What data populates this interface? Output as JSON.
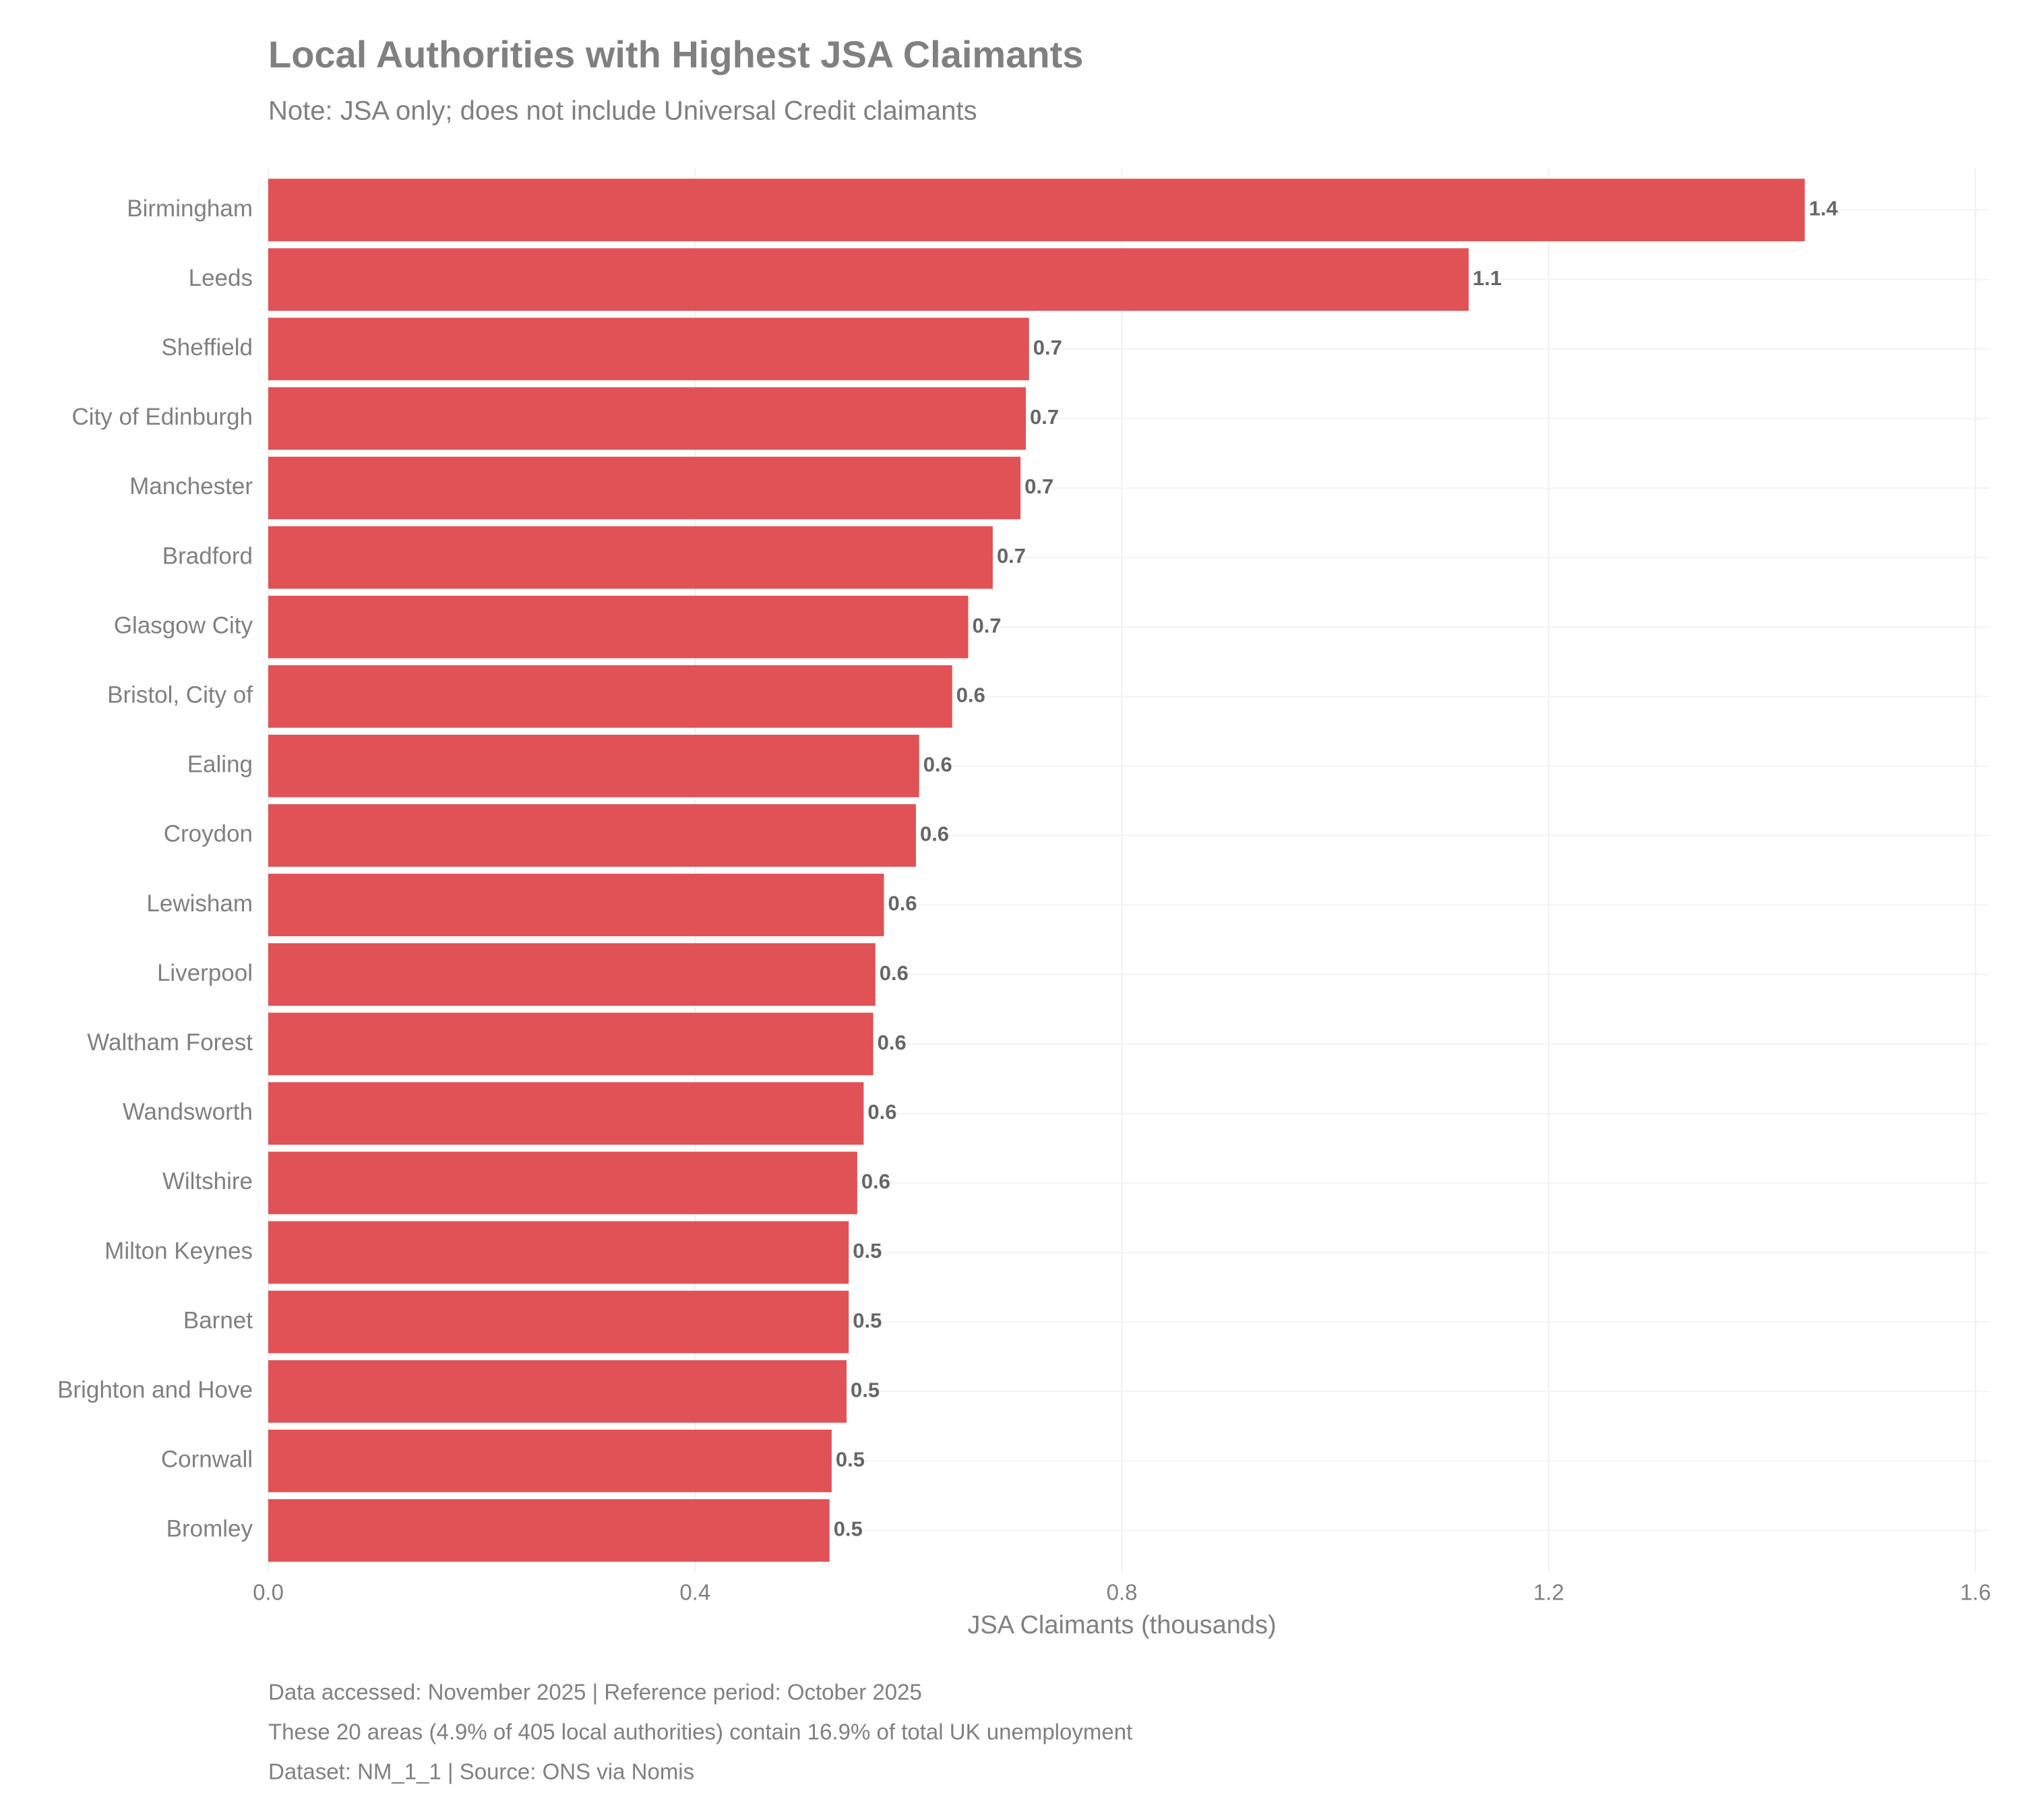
{
  "chart_data": {
    "type": "bar",
    "orientation": "horizontal",
    "title": "Local Authorities with Highest JSA Claimants",
    "subtitle": "Note: JSA only; does not include Universal Credit claimants",
    "xlabel": "JSA Claimants (thousands)",
    "categories": [
      "Birmingham",
      "Leeds",
      "Sheffield",
      "City of Edinburgh",
      "Manchester",
      "Bradford",
      "Glasgow City",
      "Bristol, City of",
      "Ealing",
      "Croydon",
      "Lewisham",
      "Liverpool",
      "Waltham Forest",
      "Wandsworth",
      "Wiltshire",
      "Milton Keynes",
      "Barnet",
      "Brighton and Hove",
      "Cornwall",
      "Bromley"
    ],
    "values": [
      1.44,
      1.125,
      0.713,
      0.71,
      0.705,
      0.679,
      0.656,
      0.641,
      0.61,
      0.607,
      0.577,
      0.569,
      0.567,
      0.558,
      0.552,
      0.544,
      0.544,
      0.542,
      0.528,
      0.526
    ],
    "value_labels": [
      "1.4",
      "1.1",
      "0.7",
      "0.7",
      "0.7",
      "0.7",
      "0.7",
      "0.6",
      "0.6",
      "0.6",
      "0.6",
      "0.6",
      "0.6",
      "0.6",
      "0.6",
      "0.5",
      "0.5",
      "0.5",
      "0.5",
      "0.5"
    ],
    "color": "#e05255",
    "xlim": [
      0,
      1.6
    ],
    "xticks": [
      {
        "value": 0,
        "label": "0.0"
      },
      0.4,
      0.8,
      1.2,
      1.6
    ],
    "grid": true,
    "captions": [
      "Data accessed: November 2025 | Reference period: October 2025",
      "These 20 areas (4.9% of 405 local authorities) contain 16.9% of total UK unemployment",
      "Dataset: NM_1_1 | Source: ONS via Nomis"
    ]
  }
}
